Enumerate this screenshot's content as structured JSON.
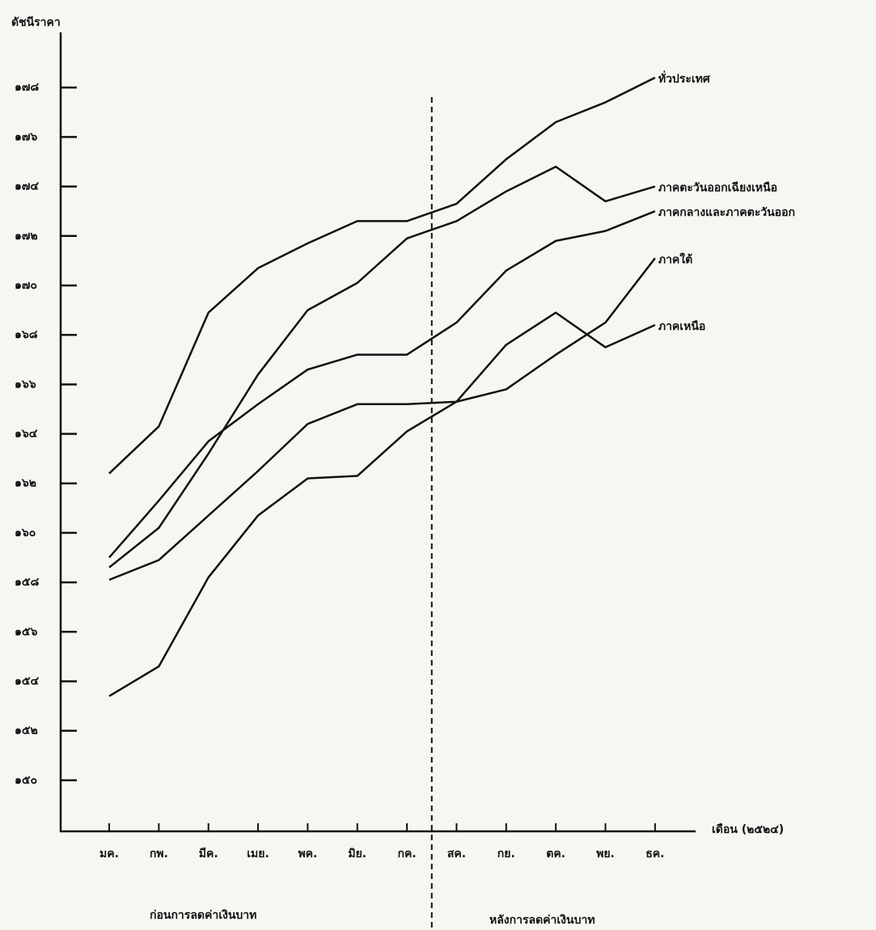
{
  "chart_data": {
    "type": "line",
    "y_label": "ดัชนีราคา",
    "x_label": "เดือน (๒๕๒๔)",
    "annotations": [
      "ก่อนการลดค่าเงินบาท",
      "หลังการลดค่าเงินบาท"
    ],
    "categories": [
      "มค.",
      "กพ.",
      "มีค.",
      "เมย.",
      "พค.",
      "มิย.",
      "กค.",
      "สค.",
      "กย.",
      "ตค.",
      "พย.",
      "ธค."
    ],
    "series": [
      {
        "name": "ทั่วประเทศ",
        "color": "#111111",
        "values": [
          162.4,
          164.3,
          168.9,
          170.7,
          171.7,
          172.6,
          172.6,
          173.3,
          175.1,
          176.6,
          177.4,
          178.4
        ]
      },
      {
        "name": "ภาคตะวันออกเฉียงเหนือ",
        "color": "#111111",
        "values": [
          158.6,
          160.2,
          163.2,
          166.4,
          169.0,
          170.1,
          171.9,
          172.6,
          173.8,
          174.8,
          173.4,
          174.0
        ]
      },
      {
        "name": "ภาคกลางและภาคตะวันออก",
        "color": "#111111",
        "values": [
          159.0,
          161.3,
          163.7,
          165.2,
          166.6,
          167.2,
          167.2,
          168.5,
          170.6,
          171.8,
          172.2,
          173.0
        ]
      },
      {
        "name": "ภาคใต้",
        "color": "#111111",
        "values": [
          158.1,
          158.9,
          160.7,
          162.5,
          164.4,
          165.2,
          165.2,
          165.3,
          165.8,
          167.2,
          168.5,
          171.1
        ]
      },
      {
        "name": "ภาคเหนือ",
        "color": "#111111",
        "values": [
          153.4,
          154.6,
          158.2,
          160.7,
          162.2,
          162.3,
          164.1,
          165.3,
          167.6,
          168.9,
          167.5,
          168.4
        ]
      }
    ],
    "ylim": [
      148,
      180
    ],
    "yticks": [
      {
        "value": 150,
        "label": "๑๕๐"
      },
      {
        "value": 152,
        "label": "๑๕๒"
      },
      {
        "value": 154,
        "label": "๑๕๔"
      },
      {
        "value": 156,
        "label": "๑๕๖"
      },
      {
        "value": 158,
        "label": "๑๕๘"
      },
      {
        "value": 160,
        "label": "๑๖๐"
      },
      {
        "value": 162,
        "label": "๑๖๒"
      },
      {
        "value": 164,
        "label": "๑๖๔"
      },
      {
        "value": 166,
        "label": "๑๖๖"
      },
      {
        "value": 168,
        "label": "๑๖๘"
      },
      {
        "value": 170,
        "label": "๑๗๐"
      },
      {
        "value": 172,
        "label": "๑๗๒"
      },
      {
        "value": 174,
        "label": "๑๗๔"
      },
      {
        "value": 176,
        "label": "๑๗๖"
      },
      {
        "value": 178,
        "label": "๑๗๘"
      }
    ],
    "grid": false
  }
}
